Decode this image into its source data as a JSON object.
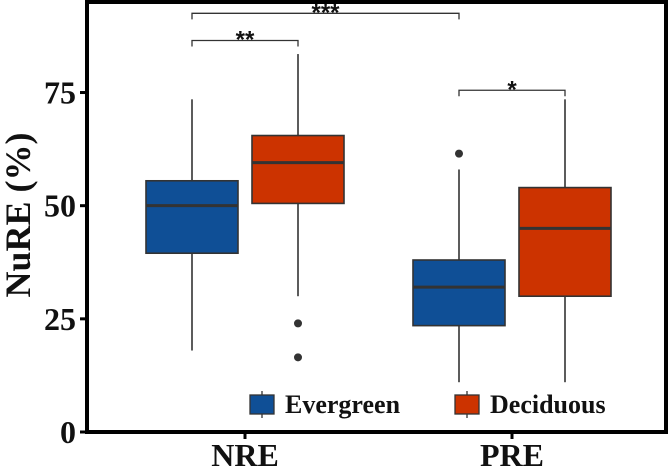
{
  "chart_data": {
    "type": "boxplot",
    "ylabel": "NuRE (%)",
    "xlabel": "",
    "categories": [
      "NRE",
      "PRE"
    ],
    "ylim": [
      0,
      95
    ],
    "y_ticks": [
      0,
      25,
      50,
      75
    ],
    "y_tick_labels": [
      "0",
      "25",
      "50",
      "75"
    ],
    "series": [
      {
        "name": "Evergreen",
        "color": "#0f4f96",
        "boxes": [
          {
            "category": "NRE",
            "min": 18,
            "q1": 39.5,
            "median": 50,
            "q3": 55.5,
            "max": 73.5,
            "outliers": []
          },
          {
            "category": "PRE",
            "min": 11,
            "q1": 23.5,
            "median": 32,
            "q3": 38,
            "max": 58,
            "outliers": [
              61.5
            ]
          }
        ]
      },
      {
        "name": "Deciduous",
        "color": "#cc3300",
        "boxes": [
          {
            "category": "NRE",
            "min": 30,
            "q1": 50.5,
            "median": 59.5,
            "q3": 65.5,
            "max": 83.5,
            "outliers": [
              24,
              16.5
            ]
          },
          {
            "category": "PRE",
            "min": 11,
            "q1": 30,
            "median": 45,
            "q3": 54,
            "max": 73.5,
            "outliers": []
          }
        ]
      }
    ],
    "significance": [
      {
        "label": "**",
        "from": {
          "category": "NRE",
          "series": "Evergreen"
        },
        "to": {
          "category": "NRE",
          "series": "Deciduous"
        },
        "y": 86.5
      },
      {
        "label": "***",
        "from": {
          "category": "NRE",
          "series": "Evergreen"
        },
        "to": {
          "category": "PRE",
          "series": "Evergreen"
        },
        "y": 92.5
      },
      {
        "label": "*",
        "from": {
          "category": "PRE",
          "series": "Evergreen"
        },
        "to": {
          "category": "PRE",
          "series": "Deciduous"
        },
        "y": 75.5
      }
    ],
    "legend": {
      "position": "bottom-right",
      "items": [
        "Evergreen",
        "Deciduous"
      ]
    },
    "grid": false
  }
}
